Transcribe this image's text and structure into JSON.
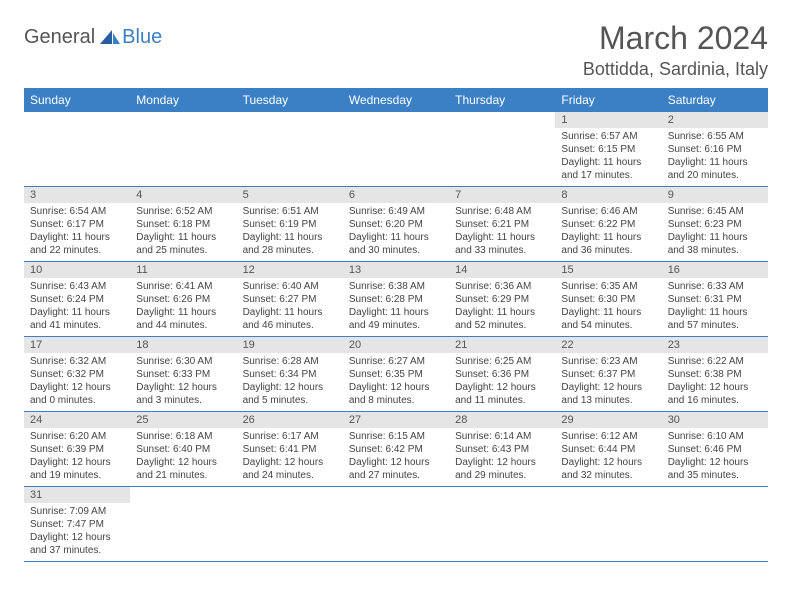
{
  "logo": {
    "text1": "General",
    "text2": "Blue"
  },
  "title": "March 2024",
  "location": "Bottidda, Sardinia, Italy",
  "colors": {
    "header_bg": "#3b7fc4",
    "daynum_bg": "#e5e5e5",
    "border": "#3b7fc4",
    "text": "#444"
  },
  "dayNames": [
    "Sunday",
    "Monday",
    "Tuesday",
    "Wednesday",
    "Thursday",
    "Friday",
    "Saturday"
  ],
  "weeks": [
    [
      {
        "blank": true
      },
      {
        "blank": true
      },
      {
        "blank": true
      },
      {
        "blank": true
      },
      {
        "blank": true
      },
      {
        "n": "1",
        "sr": "Sunrise: 6:57 AM",
        "ss": "Sunset: 6:15 PM",
        "dl": "Daylight: 11 hours and 17 minutes."
      },
      {
        "n": "2",
        "sr": "Sunrise: 6:55 AM",
        "ss": "Sunset: 6:16 PM",
        "dl": "Daylight: 11 hours and 20 minutes."
      }
    ],
    [
      {
        "n": "3",
        "sr": "Sunrise: 6:54 AM",
        "ss": "Sunset: 6:17 PM",
        "dl": "Daylight: 11 hours and 22 minutes."
      },
      {
        "n": "4",
        "sr": "Sunrise: 6:52 AM",
        "ss": "Sunset: 6:18 PM",
        "dl": "Daylight: 11 hours and 25 minutes."
      },
      {
        "n": "5",
        "sr": "Sunrise: 6:51 AM",
        "ss": "Sunset: 6:19 PM",
        "dl": "Daylight: 11 hours and 28 minutes."
      },
      {
        "n": "6",
        "sr": "Sunrise: 6:49 AM",
        "ss": "Sunset: 6:20 PM",
        "dl": "Daylight: 11 hours and 30 minutes."
      },
      {
        "n": "7",
        "sr": "Sunrise: 6:48 AM",
        "ss": "Sunset: 6:21 PM",
        "dl": "Daylight: 11 hours and 33 minutes."
      },
      {
        "n": "8",
        "sr": "Sunrise: 6:46 AM",
        "ss": "Sunset: 6:22 PM",
        "dl": "Daylight: 11 hours and 36 minutes."
      },
      {
        "n": "9",
        "sr": "Sunrise: 6:45 AM",
        "ss": "Sunset: 6:23 PM",
        "dl": "Daylight: 11 hours and 38 minutes."
      }
    ],
    [
      {
        "n": "10",
        "sr": "Sunrise: 6:43 AM",
        "ss": "Sunset: 6:24 PM",
        "dl": "Daylight: 11 hours and 41 minutes."
      },
      {
        "n": "11",
        "sr": "Sunrise: 6:41 AM",
        "ss": "Sunset: 6:26 PM",
        "dl": "Daylight: 11 hours and 44 minutes."
      },
      {
        "n": "12",
        "sr": "Sunrise: 6:40 AM",
        "ss": "Sunset: 6:27 PM",
        "dl": "Daylight: 11 hours and 46 minutes."
      },
      {
        "n": "13",
        "sr": "Sunrise: 6:38 AM",
        "ss": "Sunset: 6:28 PM",
        "dl": "Daylight: 11 hours and 49 minutes."
      },
      {
        "n": "14",
        "sr": "Sunrise: 6:36 AM",
        "ss": "Sunset: 6:29 PM",
        "dl": "Daylight: 11 hours and 52 minutes."
      },
      {
        "n": "15",
        "sr": "Sunrise: 6:35 AM",
        "ss": "Sunset: 6:30 PM",
        "dl": "Daylight: 11 hours and 54 minutes."
      },
      {
        "n": "16",
        "sr": "Sunrise: 6:33 AM",
        "ss": "Sunset: 6:31 PM",
        "dl": "Daylight: 11 hours and 57 minutes."
      }
    ],
    [
      {
        "n": "17",
        "sr": "Sunrise: 6:32 AM",
        "ss": "Sunset: 6:32 PM",
        "dl": "Daylight: 12 hours and 0 minutes."
      },
      {
        "n": "18",
        "sr": "Sunrise: 6:30 AM",
        "ss": "Sunset: 6:33 PM",
        "dl": "Daylight: 12 hours and 3 minutes."
      },
      {
        "n": "19",
        "sr": "Sunrise: 6:28 AM",
        "ss": "Sunset: 6:34 PM",
        "dl": "Daylight: 12 hours and 5 minutes."
      },
      {
        "n": "20",
        "sr": "Sunrise: 6:27 AM",
        "ss": "Sunset: 6:35 PM",
        "dl": "Daylight: 12 hours and 8 minutes."
      },
      {
        "n": "21",
        "sr": "Sunrise: 6:25 AM",
        "ss": "Sunset: 6:36 PM",
        "dl": "Daylight: 12 hours and 11 minutes."
      },
      {
        "n": "22",
        "sr": "Sunrise: 6:23 AM",
        "ss": "Sunset: 6:37 PM",
        "dl": "Daylight: 12 hours and 13 minutes."
      },
      {
        "n": "23",
        "sr": "Sunrise: 6:22 AM",
        "ss": "Sunset: 6:38 PM",
        "dl": "Daylight: 12 hours and 16 minutes."
      }
    ],
    [
      {
        "n": "24",
        "sr": "Sunrise: 6:20 AM",
        "ss": "Sunset: 6:39 PM",
        "dl": "Daylight: 12 hours and 19 minutes."
      },
      {
        "n": "25",
        "sr": "Sunrise: 6:18 AM",
        "ss": "Sunset: 6:40 PM",
        "dl": "Daylight: 12 hours and 21 minutes."
      },
      {
        "n": "26",
        "sr": "Sunrise: 6:17 AM",
        "ss": "Sunset: 6:41 PM",
        "dl": "Daylight: 12 hours and 24 minutes."
      },
      {
        "n": "27",
        "sr": "Sunrise: 6:15 AM",
        "ss": "Sunset: 6:42 PM",
        "dl": "Daylight: 12 hours and 27 minutes."
      },
      {
        "n": "28",
        "sr": "Sunrise: 6:14 AM",
        "ss": "Sunset: 6:43 PM",
        "dl": "Daylight: 12 hours and 29 minutes."
      },
      {
        "n": "29",
        "sr": "Sunrise: 6:12 AM",
        "ss": "Sunset: 6:44 PM",
        "dl": "Daylight: 12 hours and 32 minutes."
      },
      {
        "n": "30",
        "sr": "Sunrise: 6:10 AM",
        "ss": "Sunset: 6:46 PM",
        "dl": "Daylight: 12 hours and 35 minutes."
      }
    ],
    [
      {
        "n": "31",
        "sr": "Sunrise: 7:09 AM",
        "ss": "Sunset: 7:47 PM",
        "dl": "Daylight: 12 hours and 37 minutes."
      },
      {
        "blank": true
      },
      {
        "blank": true
      },
      {
        "blank": true
      },
      {
        "blank": true
      },
      {
        "blank": true
      },
      {
        "blank": true
      }
    ]
  ]
}
